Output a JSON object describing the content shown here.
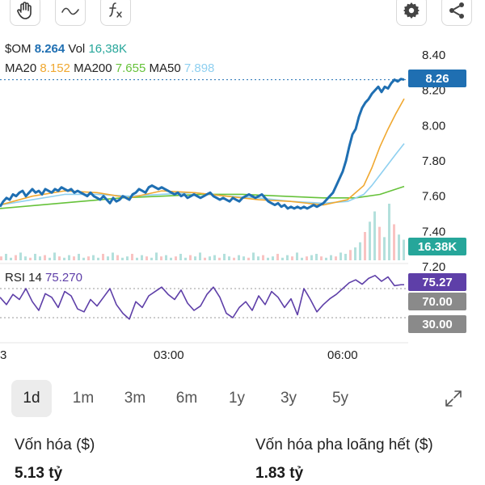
{
  "toolbar": {
    "tools": [
      {
        "name": "hand-tool",
        "icon": "hand-icon"
      },
      {
        "name": "curve-tool",
        "icon": "curve-icon"
      },
      {
        "name": "indicator-tool",
        "icon": "function-icon"
      }
    ],
    "right": [
      {
        "name": "settings",
        "icon": "gear-icon"
      },
      {
        "name": "share",
        "icon": "share-icon"
      }
    ]
  },
  "legend": {
    "symbol_label": "$OM",
    "price": "8.264",
    "vol_label": "Vol",
    "vol": "16,38K",
    "ma20_label": "MA20",
    "ma20": "8.152",
    "ma200_label": "MA200",
    "ma200": "7.655",
    "ma50_label": "MA50",
    "ma50": "7.898"
  },
  "rsi": {
    "label": "RSI 14",
    "value": "75.270"
  },
  "badges": {
    "price": "8.26",
    "volume": "16.38K",
    "rsi": "75.27",
    "rsi_upper": "70.00",
    "rsi_lower": "30.00"
  },
  "colors": {
    "price": "#1f6fb2",
    "ma20": "#f0a830",
    "ma50": "#8fd0f0",
    "ma200": "#66c23a",
    "volume_up": "#26a69a",
    "rsi": "#5e3fa8",
    "muted_badge": "#8a8a8a"
  },
  "chart_data": {
    "type": "line",
    "price_axis": {
      "ticks": [
        "8.40",
        "8.20",
        "8.00",
        "7.80",
        "7.60",
        "7.40",
        "7.20"
      ],
      "range": [
        7.2,
        8.4
      ]
    },
    "time_axis": {
      "ticks": [
        "3",
        "03:00",
        "06:00"
      ]
    },
    "price_series": [
      {
        "name": "$OM",
        "x": [
          0,
          4,
          8,
          12,
          16,
          20,
          24,
          28,
          32,
          36,
          40,
          44,
          48,
          52,
          56,
          60,
          64,
          68,
          72,
          76,
          80,
          84,
          88,
          92,
          96,
          100,
          104,
          108,
          112,
          116,
          120,
          124,
          128,
          132,
          136,
          140,
          144,
          148,
          152,
          156,
          160,
          164,
          168,
          172,
          176,
          180,
          184,
          188,
          192,
          196,
          200,
          204,
          208,
          212,
          216,
          220,
          224,
          228,
          232,
          236,
          240,
          244,
          248,
          252,
          256,
          260,
          264,
          268,
          272,
          276,
          280,
          284,
          288,
          292,
          296,
          300,
          304,
          308,
          312,
          316,
          320,
          324,
          328,
          332,
          336,
          340,
          344,
          348,
          352,
          356,
          360,
          364,
          368,
          372,
          376,
          380,
          384,
          388,
          392,
          396,
          400,
          404,
          408,
          412,
          416,
          420,
          424,
          428,
          432,
          436,
          440,
          444,
          448,
          452,
          456,
          460,
          464,
          468,
          472,
          476,
          480,
          484,
          488,
          492,
          496,
          500
        ],
        "values": [
          7.54,
          7.57,
          7.59,
          7.58,
          7.61,
          7.6,
          7.62,
          7.63,
          7.6,
          7.62,
          7.64,
          7.62,
          7.63,
          7.61,
          7.64,
          7.63,
          7.62,
          7.64,
          7.63,
          7.65,
          7.64,
          7.63,
          7.64,
          7.62,
          7.63,
          7.62,
          7.61,
          7.6,
          7.62,
          7.6,
          7.59,
          7.58,
          7.6,
          7.58,
          7.56,
          7.59,
          7.57,
          7.58,
          7.6,
          7.59,
          7.58,
          7.61,
          7.62,
          7.64,
          7.63,
          7.62,
          7.65,
          7.66,
          7.65,
          7.64,
          7.65,
          7.64,
          7.63,
          7.62,
          7.61,
          7.62,
          7.6,
          7.61,
          7.59,
          7.6,
          7.61,
          7.6,
          7.59,
          7.6,
          7.61,
          7.62,
          7.6,
          7.59,
          7.58,
          7.59,
          7.58,
          7.57,
          7.59,
          7.58,
          7.57,
          7.59,
          7.6,
          7.61,
          7.6,
          7.59,
          7.6,
          7.61,
          7.59,
          7.57,
          7.56,
          7.55,
          7.56,
          7.54,
          7.55,
          7.53,
          7.54,
          7.53,
          7.54,
          7.53,
          7.54,
          7.53,
          7.54,
          7.55,
          7.54,
          7.55,
          7.56,
          7.58,
          7.6,
          7.62,
          7.66,
          7.7,
          7.74,
          7.8,
          7.88,
          7.95,
          7.98,
          8.05,
          8.1,
          8.13,
          8.15,
          8.18,
          8.2,
          8.22,
          8.19,
          8.22,
          8.21,
          8.24,
          8.26,
          8.25,
          8.264,
          8.26
        ]
      },
      {
        "name": "MA20",
        "x": [
          0,
          40,
          80,
          120,
          160,
          200,
          240,
          280,
          320,
          360,
          400,
          430,
          450,
          460,
          470,
          480,
          490,
          500
        ],
        "values": [
          7.55,
          7.6,
          7.63,
          7.62,
          7.59,
          7.63,
          7.62,
          7.6,
          7.58,
          7.57,
          7.55,
          7.58,
          7.66,
          7.76,
          7.88,
          7.98,
          8.07,
          8.152
        ]
      },
      {
        "name": "MA50",
        "x": [
          0,
          40,
          80,
          120,
          160,
          200,
          240,
          280,
          320,
          360,
          400,
          430,
          450,
          460,
          470,
          480,
          490,
          500
        ],
        "values": [
          7.55,
          7.58,
          7.61,
          7.61,
          7.6,
          7.61,
          7.62,
          7.6,
          7.59,
          7.57,
          7.56,
          7.57,
          7.61,
          7.66,
          7.72,
          7.78,
          7.84,
          7.898
        ]
      },
      {
        "name": "MA200",
        "x": [
          0,
          50,
          100,
          150,
          200,
          250,
          300,
          350,
          400,
          440,
          470,
          500
        ],
        "values": [
          7.53,
          7.55,
          7.57,
          7.59,
          7.6,
          7.61,
          7.61,
          7.6,
          7.59,
          7.59,
          7.61,
          7.655
        ]
      }
    ],
    "rsi_series": {
      "name": "RSI 14",
      "range": [
        0,
        100
      ],
      "levels": [
        70,
        30
      ],
      "x": [
        0,
        8,
        16,
        24,
        32,
        40,
        48,
        56,
        64,
        72,
        80,
        88,
        96,
        104,
        112,
        120,
        128,
        136,
        144,
        152,
        160,
        168,
        176,
        184,
        192,
        200,
        208,
        216,
        224,
        232,
        240,
        248,
        256,
        264,
        272,
        280,
        288,
        296,
        304,
        312,
        320,
        328,
        336,
        344,
        352,
        360,
        368,
        376,
        384,
        392,
        400,
        408,
        416,
        424,
        432,
        440,
        448,
        456,
        464,
        472,
        480,
        488,
        496,
        500
      ],
      "values": [
        58,
        48,
        62,
        55,
        70,
        52,
        40,
        63,
        58,
        44,
        66,
        60,
        42,
        38,
        55,
        46,
        58,
        70,
        48,
        36,
        28,
        52,
        44,
        60,
        66,
        72,
        62,
        55,
        68,
        50,
        40,
        46,
        62,
        72,
        58,
        36,
        30,
        44,
        52,
        40,
        60,
        48,
        66,
        58,
        44,
        56,
        34,
        70,
        55,
        38,
        48,
        56,
        62,
        70,
        78,
        82,
        76,
        84,
        88,
        80,
        86,
        74,
        75.27,
        75.27
      ]
    },
    "volume_series": {
      "name": "Vol",
      "note": "volume bars, larger near the end",
      "x": [
        0,
        6,
        12,
        18,
        24,
        30,
        36,
        42,
        48,
        54,
        60,
        66,
        72,
        78,
        84,
        90,
        96,
        102,
        108,
        114,
        120,
        126,
        132,
        138,
        144,
        150,
        156,
        162,
        168,
        174,
        180,
        186,
        192,
        198,
        204,
        210,
        216,
        222,
        228,
        234,
        240,
        246,
        252,
        258,
        264,
        270,
        276,
        282,
        288,
        294,
        300,
        306,
        312,
        318,
        324,
        330,
        336,
        342,
        348,
        354,
        360,
        366,
        372,
        378,
        384,
        390,
        396,
        402,
        408,
        414,
        420,
        426,
        432,
        438,
        444,
        450,
        456,
        462,
        468,
        474,
        480,
        486,
        492,
        498
      ],
      "values": [
        3,
        5,
        2,
        4,
        6,
        3,
        2,
        5,
        3,
        4,
        2,
        6,
        3,
        2,
        4,
        3,
        5,
        2,
        3,
        4,
        2,
        5,
        3,
        6,
        4,
        2,
        3,
        5,
        2,
        4,
        3,
        2,
        6,
        3,
        4,
        2,
        3,
        5,
        2,
        4,
        3,
        6,
        2,
        3,
        4,
        2,
        5,
        3,
        2,
        4,
        3,
        2,
        6,
        3,
        4,
        2,
        3,
        5,
        2,
        4,
        3,
        6,
        2,
        3,
        4,
        5,
        3,
        2,
        4,
        3,
        6,
        5,
        8,
        10,
        14,
        22,
        30,
        38,
        26,
        18,
        44,
        28,
        20,
        16
      ]
    }
  },
  "ranges": {
    "items": [
      {
        "label": "1d",
        "active": true
      },
      {
        "label": "1m",
        "active": false
      },
      {
        "label": "3m",
        "active": false
      },
      {
        "label": "6m",
        "active": false
      },
      {
        "label": "1y",
        "active": false
      },
      {
        "label": "3y",
        "active": false
      },
      {
        "label": "5y",
        "active": false
      }
    ]
  },
  "stats": {
    "market_cap_label": "Vốn hóa ($)",
    "market_cap_value": "5.13 tỷ",
    "diluted_cap_label": "Vốn hóa pha loãng hết ($)",
    "diluted_cap_value": "1.83 tỷ"
  }
}
